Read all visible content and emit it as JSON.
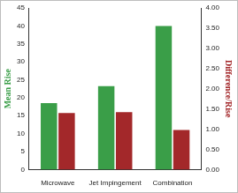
{
  "chart_data": {
    "type": "bar",
    "categories": [
      "Microwave",
      "Jet Impingement",
      "Combination"
    ],
    "series": [
      {
        "name": "Mean Rise",
        "color": "#3a9e48",
        "values": [
          18.5,
          23.2,
          40.0
        ]
      },
      {
        "name": "Difference/Rise",
        "color": "#a3282a",
        "values": [
          1.4,
          1.42,
          0.98
        ],
        "axis": "y2"
      }
    ],
    "ylim": [
      0,
      45
    ],
    "yticks": [
      0,
      5,
      10,
      15,
      20,
      25,
      30,
      35,
      40,
      45
    ],
    "y2lim": [
      0,
      4
    ],
    "y2ticks": [
      {
        "value": 0,
        "label": "0.00"
      },
      {
        "value": 0.5,
        "label": "0.50"
      },
      {
        "value": 1,
        "label": "1.00"
      },
      {
        "value": 1.5,
        "label": "1.50"
      },
      {
        "value": 2,
        "label": "2.00"
      },
      {
        "value": 2.5,
        "label": "2.50"
      },
      {
        "value": 3,
        "label": "3.00"
      },
      {
        "value": 3.5,
        "label": "3.50"
      },
      {
        "value": 4,
        "label": "4.00"
      }
    ],
    "grid": false
  }
}
